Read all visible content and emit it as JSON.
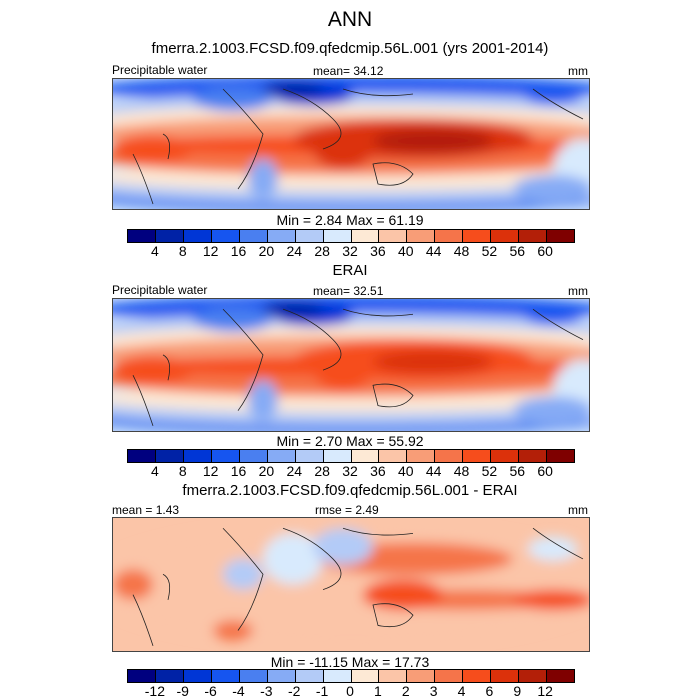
{
  "title": "ANN",
  "panels": [
    {
      "subtitle": "fmerra.2.1003.FCSD.f09.qfedcmip.56L.001 (yrs 2001-2014)",
      "left": "Precipitable water",
      "center": "mean=  34.12",
      "right": "mm",
      "minmax": "Min =   2.84 Max =  61.19",
      "type": "field"
    },
    {
      "subtitle": "ERAI",
      "left": "Precipitable water",
      "center": "mean=  32.51",
      "right": "mm",
      "minmax": "Min =   2.70 Max =  55.92",
      "type": "field"
    },
    {
      "subtitle": "fmerra.2.1003.FCSD.f09.qfedcmip.56L.001 - ERAI",
      "left": "mean =   1.43",
      "center": "rmse =   2.49",
      "right": "mm",
      "minmax": "Min = -11.15 Max =  17.73",
      "type": "diff"
    }
  ],
  "colorbar_field_labels": [
    "4",
    "8",
    "12",
    "16",
    "20",
    "24",
    "28",
    "32",
    "36",
    "40",
    "44",
    "48",
    "52",
    "56",
    "60"
  ],
  "colorbar_diff_labels": [
    "-12",
    "-9",
    "-6",
    "-4",
    "-3",
    "-2",
    "-1",
    "0",
    "1",
    "2",
    "3",
    "4",
    "6",
    "9",
    "12"
  ],
  "colors": [
    "#00007f",
    "#0022a6",
    "#0036d6",
    "#1655f0",
    "#4a7ff0",
    "#86abf5",
    "#b3cbf7",
    "#d8eafd",
    "#fde9d5",
    "#fbc5a8",
    "#f89d77",
    "#f5744a",
    "#f64d1c",
    "#dc310b",
    "#b31f08",
    "#7f0000"
  ]
}
